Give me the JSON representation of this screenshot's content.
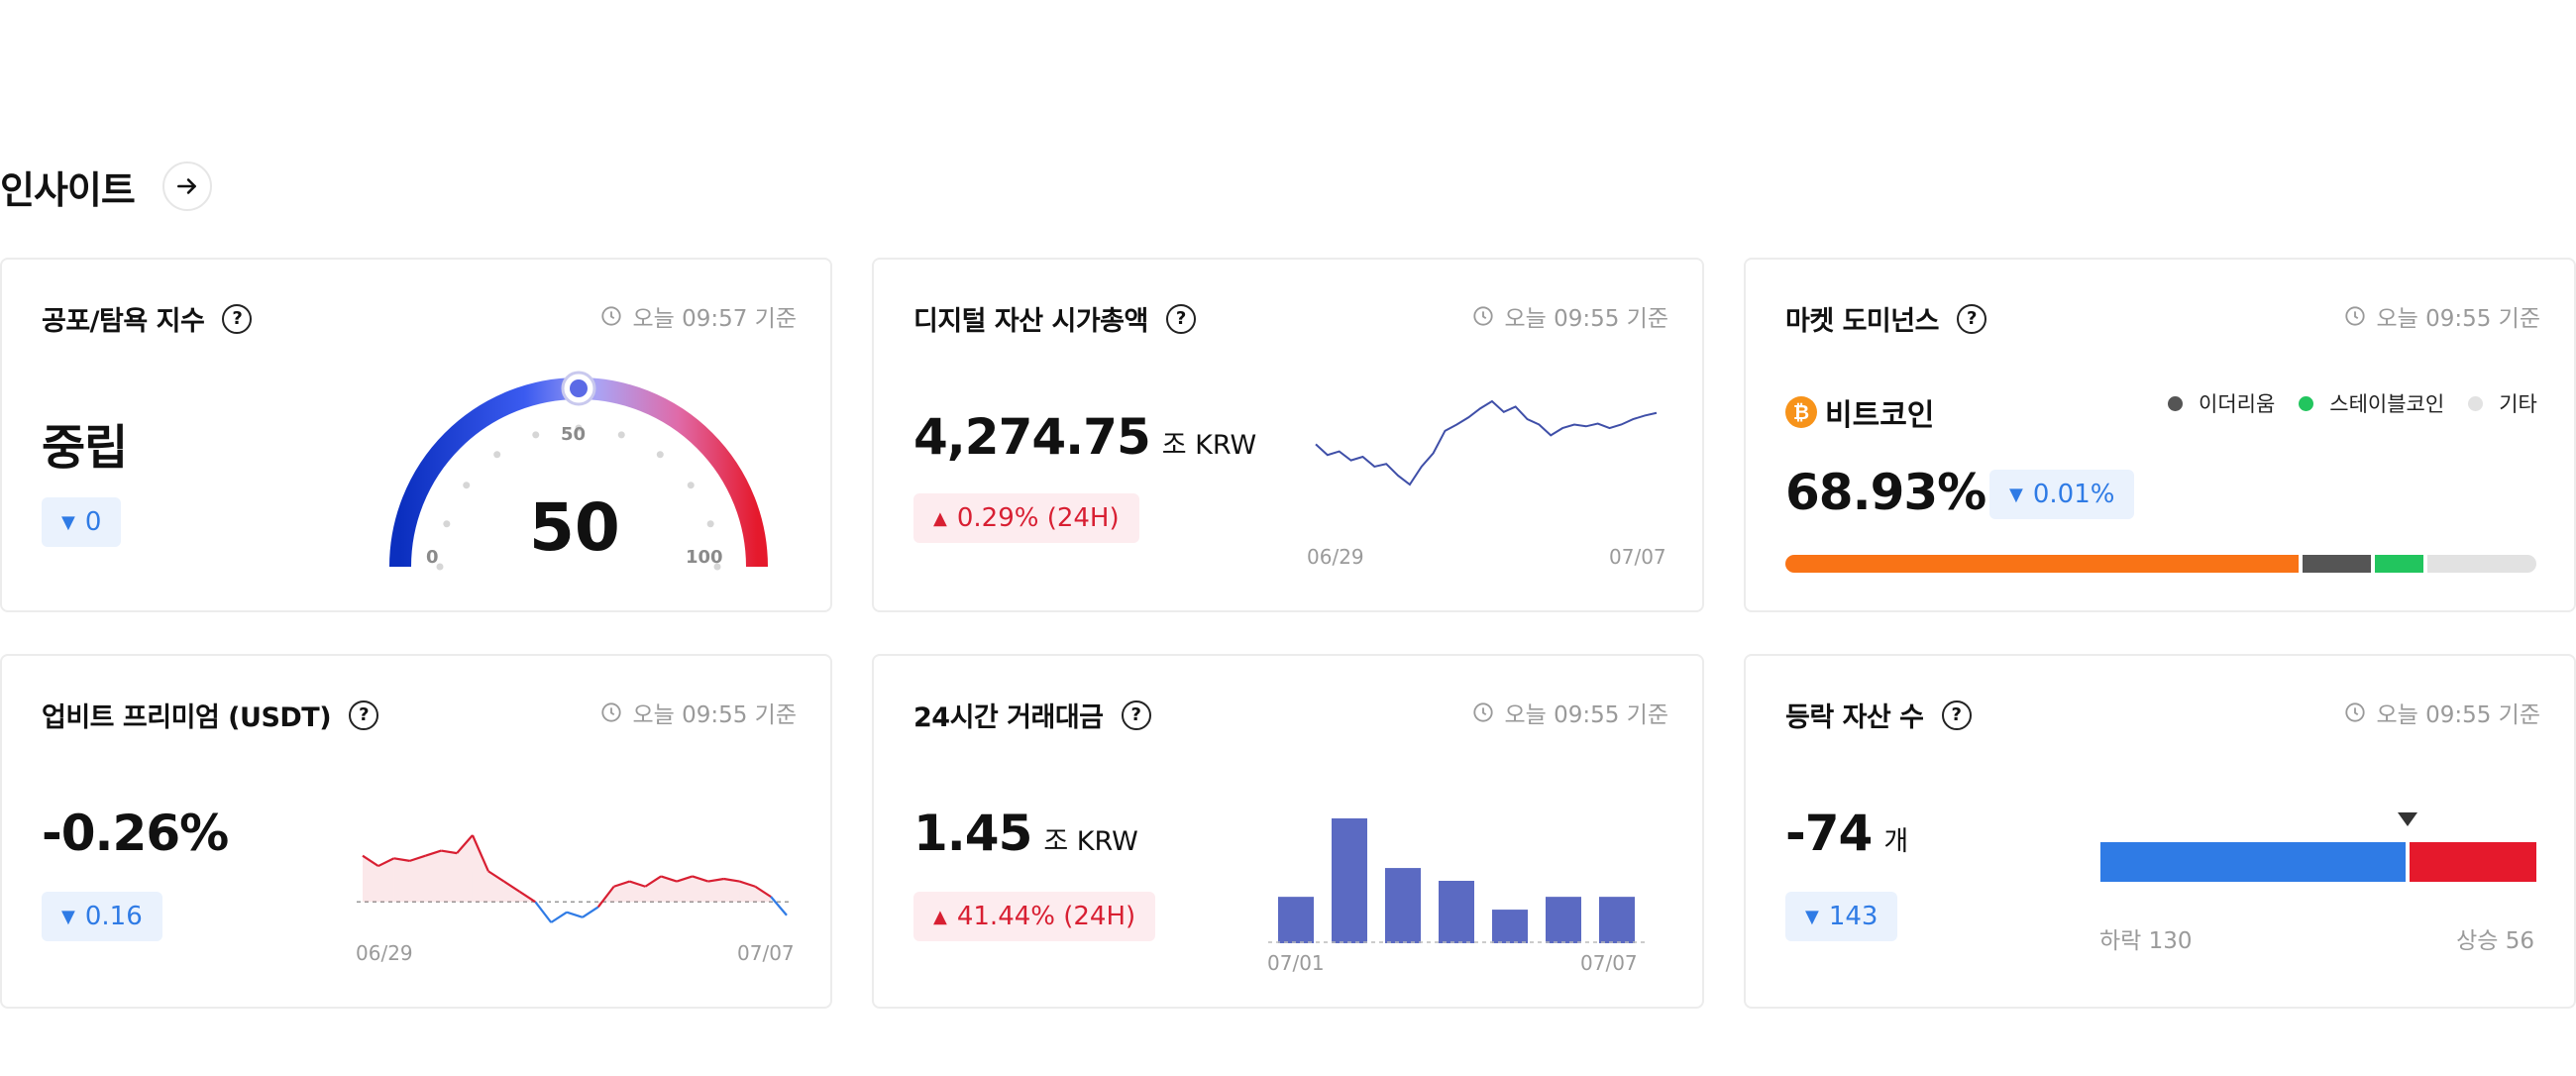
{
  "section": {
    "title": "인사이트"
  },
  "fear_greed": {
    "title": "공포/탐욕 지수",
    "timestamp": "오늘 09:57 기준",
    "status": "중립",
    "change": "0",
    "value": "50",
    "scale_min": "0",
    "scale_mid": "50",
    "scale_max": "100",
    "level": 50
  },
  "market_cap": {
    "title": "디지털 자산 시가총액",
    "timestamp": "오늘 09:55 기준",
    "value": "4,274.75",
    "unit": "조 KRW",
    "change": "0.29% (24H)",
    "x_start": "06/29",
    "x_end": "07/07"
  },
  "dominance": {
    "title": "마켓 도미넌스",
    "timestamp": "오늘 09:55 기준",
    "coin": "비트코인",
    "coin_icon": "bitcoin-icon",
    "value": "68.93%",
    "change": "0.01%",
    "legend": [
      {
        "label": "이더리움",
        "color": "#555555"
      },
      {
        "label": "스테이블코인",
        "color": "#22c55e"
      },
      {
        "label": "기타",
        "color": "#e2e2e2"
      }
    ],
    "segments": [
      {
        "name": "비트코인",
        "share": 68.93,
        "color": "#f97316"
      },
      {
        "name": "이더리움",
        "share": 9.6,
        "color": "#555555"
      },
      {
        "name": "스테이블코인",
        "share": 7.0,
        "color": "#22c55e"
      },
      {
        "name": "기타",
        "share": 14.47,
        "color": "#e2e2e2"
      }
    ]
  },
  "premium": {
    "title": "업비트 프리미엄 (USDT)",
    "timestamp": "오늘 09:55 기준",
    "value": "-0.26%",
    "change": "0.16",
    "x_start": "06/29",
    "x_end": "07/07"
  },
  "volume": {
    "title": "24시간 거래대금",
    "timestamp": "오늘 09:55 기준",
    "value": "1.45",
    "unit": "조 KRW",
    "change": "41.44% (24H)",
    "x_start": "07/01",
    "x_end": "07/07"
  },
  "advance_decline": {
    "title": "등락 자산 수",
    "timestamp": "오늘 09:55 기준",
    "value": "-74",
    "unit": "개",
    "change": "143",
    "down_label": "하락 130",
    "up_label": "상승 56",
    "down": 130,
    "up": 56
  },
  "chart_data": [
    {
      "type": "line",
      "title": "디지털 자산 시가총액",
      "x_labels": [
        "06/29",
        "07/07"
      ],
      "series": [
        {
          "values": [
            4240,
            4228,
            4232,
            4222,
            4226,
            4215,
            4218,
            4205,
            4195,
            4215,
            4230,
            4255,
            4262,
            4270,
            4280,
            4288,
            4276,
            4282,
            4268,
            4262,
            4250,
            4258,
            4262,
            4260,
            4263,
            4258,
            4262,
            4268,
            4272,
            4275
          ]
        }
      ]
    },
    {
      "type": "area",
      "title": "업비트 프리미엄 (USDT)",
      "x_labels": [
        "06/29",
        "07/07"
      ],
      "series": [
        {
          "values": [
            0.9,
            0.7,
            0.85,
            0.8,
            0.9,
            1.0,
            0.95,
            1.3,
            0.6,
            0.4,
            0.2,
            0.0,
            -0.4,
            -0.2,
            -0.3,
            -0.1,
            0.3,
            0.4,
            0.3,
            0.5,
            0.4,
            0.5,
            0.4,
            0.45,
            0.4,
            0.3,
            0.1,
            -0.26
          ]
        }
      ]
    },
    {
      "type": "bar",
      "title": "24시간 거래대금",
      "x_labels": [
        "07/01",
        "07/07"
      ],
      "categories": [
        "07/01",
        "07/02",
        "07/03",
        "07/04",
        "07/05",
        "07/06",
        "07/07"
      ],
      "values": [
        1.45,
        3.9,
        2.35,
        1.95,
        1.05,
        1.45,
        1.45
      ]
    }
  ],
  "colors": {
    "up": "#d81f32",
    "down": "#2f7be5",
    "bar": "#5b6ac2",
    "line": "#3f4fa8"
  }
}
